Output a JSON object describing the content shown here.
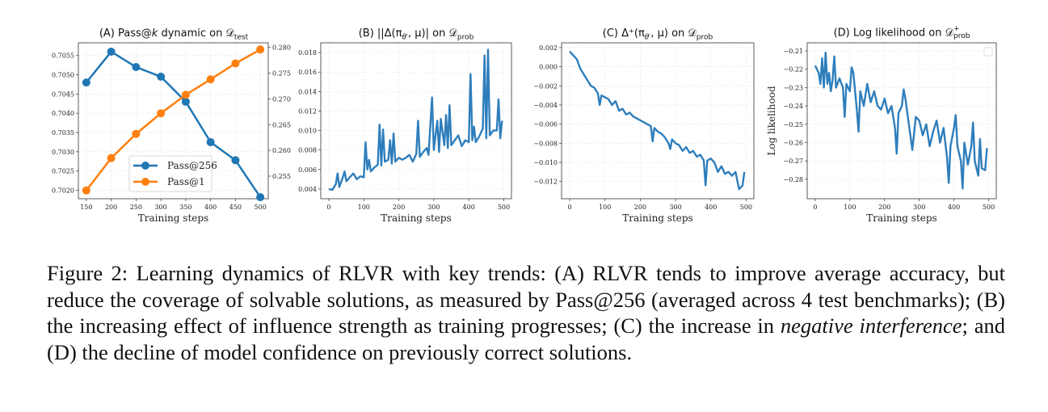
{
  "figure": {
    "panels": [
      {
        "title_main": "(A) Pass@",
        "title_var": "k",
        "title_rest": " dynamic on 𝒟",
        "title_sub": "test",
        "title_sup": ""
      },
      {
        "title_main": "(B) ||Δ(π",
        "title_var": "θ′",
        "title_rest": ", μ)| on 𝒟",
        "title_sub": "prob",
        "title_sup": ""
      },
      {
        "title_main": "(C) Δ⁺(π",
        "title_var": "θ′",
        "title_rest": ", μ) on 𝒟",
        "title_sub": "prob",
        "title_sup": ""
      },
      {
        "title_main": "(D) Log likelihood on 𝒟",
        "title_var": "",
        "title_rest": "",
        "title_sub": "prob",
        "title_sup": "+"
      }
    ]
  },
  "chart_data": [
    {
      "type": "line",
      "title": "(A) Pass@k dynamic on D_test",
      "xlabel": "Training steps",
      "x": [
        150,
        200,
        250,
        300,
        350,
        400,
        450,
        500
      ],
      "xticks": [
        150,
        200,
        250,
        300,
        350,
        400,
        450,
        500
      ],
      "xlim": [
        134,
        516
      ],
      "series": [
        {
          "name": "Pass@256",
          "axis": "left",
          "color": "#1f77b4",
          "values": [
            0.7048,
            0.7056,
            0.7052,
            0.70495,
            0.7043,
            0.70325,
            0.70278,
            0.70182
          ]
        },
        {
          "name": "Pass@1",
          "axis": "right",
          "color": "#ff7f0e",
          "values": [
            0.2522,
            0.2585,
            0.2632,
            0.2672,
            0.2708,
            0.2738,
            0.2769,
            0.2796
          ]
        }
      ],
      "ylim_left": [
        0.70178,
        0.70583
      ],
      "yticks_left": [
        "0.7020",
        "0.7025",
        "0.7030",
        "0.7035",
        "0.7040",
        "0.7045",
        "0.7050",
        "0.7055"
      ],
      "ylim_right": [
        0.2506,
        0.2809
      ],
      "yticks_right": [
        "0.255",
        "0.260",
        "0.265",
        "0.270",
        "0.275",
        "0.280"
      ],
      "legend": "lower-center",
      "grid": true
    },
    {
      "type": "line",
      "title": "(B) ||Δ(π_θ', μ)| on D_prob",
      "xlabel": "Training steps",
      "xticks": [
        0,
        100,
        200,
        300,
        400,
        500
      ],
      "xlim": [
        -23,
        522
      ],
      "ylim": [
        0.003,
        0.019
      ],
      "yticks": [
        "0.004",
        "0.006",
        "0.008",
        "0.010",
        "0.012",
        "0.014",
        "0.016",
        "0.018"
      ],
      "grid": true,
      "color": "#2e7ebc",
      "x": [
        0,
        10,
        20,
        25,
        30,
        40,
        45,
        50,
        60,
        70,
        80,
        90,
        100,
        105,
        110,
        115,
        120,
        130,
        140,
        145,
        150,
        155,
        160,
        170,
        175,
        180,
        185,
        190,
        200,
        210,
        220,
        230,
        240,
        250,
        255,
        260,
        270,
        280,
        285,
        295,
        300,
        310,
        315,
        320,
        330,
        335,
        340,
        345,
        350,
        360,
        370,
        380,
        390,
        400,
        405,
        410,
        415,
        420,
        430,
        440,
        445,
        450,
        455,
        460,
        470,
        480,
        485,
        490,
        495
      ],
      "values": [
        0.004,
        0.0039,
        0.0045,
        0.0056,
        0.0042,
        0.0052,
        0.0058,
        0.0048,
        0.0052,
        0.0056,
        0.005,
        0.0053,
        0.0052,
        0.0088,
        0.006,
        0.007,
        0.0058,
        0.0062,
        0.0065,
        0.0106,
        0.0064,
        0.0101,
        0.0068,
        0.007,
        0.009,
        0.0066,
        0.0097,
        0.0068,
        0.0072,
        0.007,
        0.0072,
        0.0075,
        0.0068,
        0.0076,
        0.011,
        0.0073,
        0.0078,
        0.0082,
        0.0075,
        0.0134,
        0.008,
        0.011,
        0.0078,
        0.0112,
        0.0085,
        0.0116,
        0.0082,
        0.0126,
        0.0085,
        0.009,
        0.0095,
        0.0084,
        0.009,
        0.0088,
        0.0158,
        0.009,
        0.0104,
        0.0088,
        0.0094,
        0.0102,
        0.0177,
        0.0092,
        0.0183,
        0.0095,
        0.01,
        0.01,
        0.0132,
        0.0092,
        0.011
      ]
    },
    {
      "type": "line",
      "title": "(C) Δ+(π_θ', μ) on D_prob",
      "xlabel": "Training steps",
      "xticks": [
        0,
        100,
        200,
        300,
        400,
        500
      ],
      "xlim": [
        -23,
        522
      ],
      "ylim": [
        -0.0138,
        0.0025
      ],
      "yticks": [
        "−0.012",
        "−0.010",
        "−0.008",
        "−0.006",
        "−0.004",
        "−0.002",
        "0.000",
        "0.002"
      ],
      "grid": true,
      "color": "#2e7ebc",
      "x": [
        0,
        10,
        20,
        30,
        40,
        50,
        60,
        70,
        80,
        85,
        90,
        100,
        110,
        120,
        130,
        140,
        150,
        160,
        170,
        180,
        190,
        200,
        210,
        220,
        230,
        235,
        240,
        250,
        260,
        270,
        280,
        285,
        290,
        300,
        310,
        320,
        330,
        340,
        350,
        360,
        370,
        380,
        385,
        390,
        400,
        410,
        420,
        430,
        440,
        450,
        460,
        470,
        480,
        490,
        495
      ],
      "values": [
        0.0016,
        0.0012,
        0.0008,
        -0.0002,
        -0.0008,
        -0.0014,
        -0.002,
        -0.0022,
        -0.0028,
        -0.004,
        -0.003,
        -0.0032,
        -0.0034,
        -0.004,
        -0.0036,
        -0.0046,
        -0.0044,
        -0.005,
        -0.0048,
        -0.0052,
        -0.0054,
        -0.0056,
        -0.0058,
        -0.006,
        -0.0062,
        -0.0078,
        -0.0064,
        -0.0068,
        -0.007,
        -0.0074,
        -0.008,
        -0.0086,
        -0.0076,
        -0.008,
        -0.0082,
        -0.0088,
        -0.0084,
        -0.009,
        -0.0088,
        -0.0094,
        -0.0092,
        -0.0098,
        -0.0124,
        -0.0098,
        -0.0096,
        -0.01,
        -0.011,
        -0.0104,
        -0.0112,
        -0.011,
        -0.0114,
        -0.011,
        -0.0128,
        -0.0124,
        -0.011
      ]
    },
    {
      "type": "line",
      "title": "(D) Log likelihood on D+_prob",
      "xlabel": "Training steps",
      "ylabel": "Log likelihood",
      "xticks": [
        0,
        100,
        200,
        300,
        400,
        500
      ],
      "xlim": [
        -23,
        522
      ],
      "ylim": [
        -0.2906,
        -0.2056
      ],
      "yticks": [
        "−0.28",
        "−0.27",
        "−0.26",
        "−0.25",
        "−0.24",
        "−0.23",
        "−0.22",
        "−0.21"
      ],
      "grid": true,
      "legend": "top-right",
      "color": "#2e7ebc",
      "x": [
        0,
        10,
        15,
        20,
        25,
        30,
        35,
        40,
        45,
        50,
        55,
        60,
        70,
        80,
        85,
        90,
        100,
        105,
        110,
        120,
        125,
        130,
        140,
        150,
        160,
        170,
        180,
        190,
        200,
        210,
        220,
        230,
        235,
        240,
        250,
        255,
        260,
        270,
        280,
        290,
        300,
        310,
        320,
        330,
        340,
        350,
        360,
        370,
        380,
        385,
        390,
        400,
        405,
        410,
        420,
        425,
        430,
        440,
        450,
        455,
        460,
        470,
        475,
        480,
        490,
        495
      ],
      "values": [
        -0.218,
        -0.222,
        -0.228,
        -0.214,
        -0.23,
        -0.211,
        -0.228,
        -0.222,
        -0.232,
        -0.226,
        -0.213,
        -0.23,
        -0.225,
        -0.23,
        -0.246,
        -0.228,
        -0.232,
        -0.219,
        -0.222,
        -0.242,
        -0.254,
        -0.232,
        -0.24,
        -0.228,
        -0.238,
        -0.232,
        -0.24,
        -0.242,
        -0.236,
        -0.244,
        -0.24,
        -0.252,
        -0.266,
        -0.244,
        -0.24,
        -0.231,
        -0.236,
        -0.25,
        -0.264,
        -0.246,
        -0.248,
        -0.256,
        -0.25,
        -0.262,
        -0.254,
        -0.248,
        -0.26,
        -0.252,
        -0.268,
        -0.282,
        -0.262,
        -0.252,
        -0.245,
        -0.262,
        -0.27,
        -0.285,
        -0.26,
        -0.272,
        -0.262,
        -0.249,
        -0.27,
        -0.278,
        -0.258,
        -0.274,
        -0.275,
        -0.263
      ]
    }
  ],
  "caption": {
    "part1": "Figure 2: Learning dynamics of RLVR with key trends: (A) RLVR tends to improve average accuracy, but reduce the coverage of solvable solutions, as measured by Pass@256 (averaged across 4 test benchmarks); (B) the increasing effect of influence strength as training progresses; (C) the increase in ",
    "italic": "negative interference",
    "part2": "; and (D) the decline of model confidence on previously correct solutions."
  }
}
